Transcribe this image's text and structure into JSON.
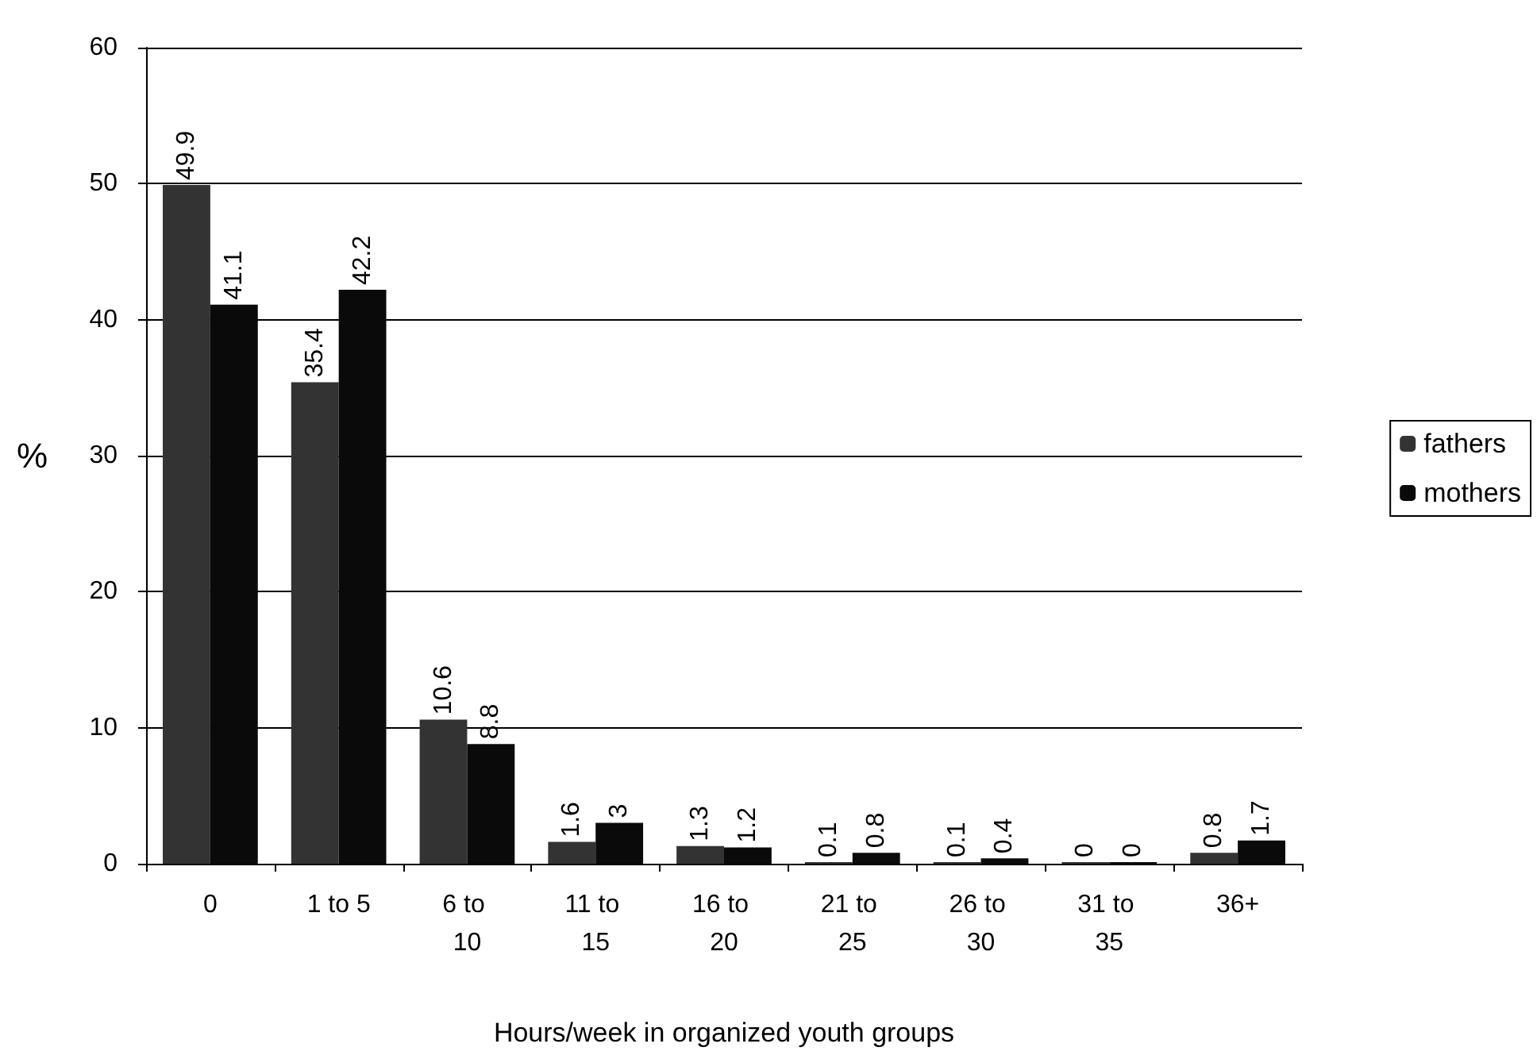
{
  "chart_data": {
    "type": "bar",
    "xlabel": "Hours/week in organized youth groups",
    "ylabel": "%",
    "categories": [
      "0",
      "1 to 5",
      "6 to 10",
      "11 to 15",
      "16 to 20",
      "21 to 25",
      "26 to 30",
      "31 to 35",
      "36+"
    ],
    "series": [
      {
        "name": "fathers",
        "color": "#333333",
        "values": [
          49.9,
          35.4,
          10.6,
          1.6,
          1.3,
          0.1,
          0.1,
          0,
          0.8
        ]
      },
      {
        "name": "mothers",
        "color": "#0a0a0a",
        "values": [
          41.1,
          42.2,
          8.8,
          3,
          1.2,
          0.8,
          0.4,
          0,
          1.7
        ]
      }
    ],
    "ylim": [
      0,
      60
    ],
    "yticks": [
      0,
      10,
      20,
      30,
      40,
      50,
      60
    ],
    "grid": "y",
    "legend": "right",
    "data_labels": true
  }
}
